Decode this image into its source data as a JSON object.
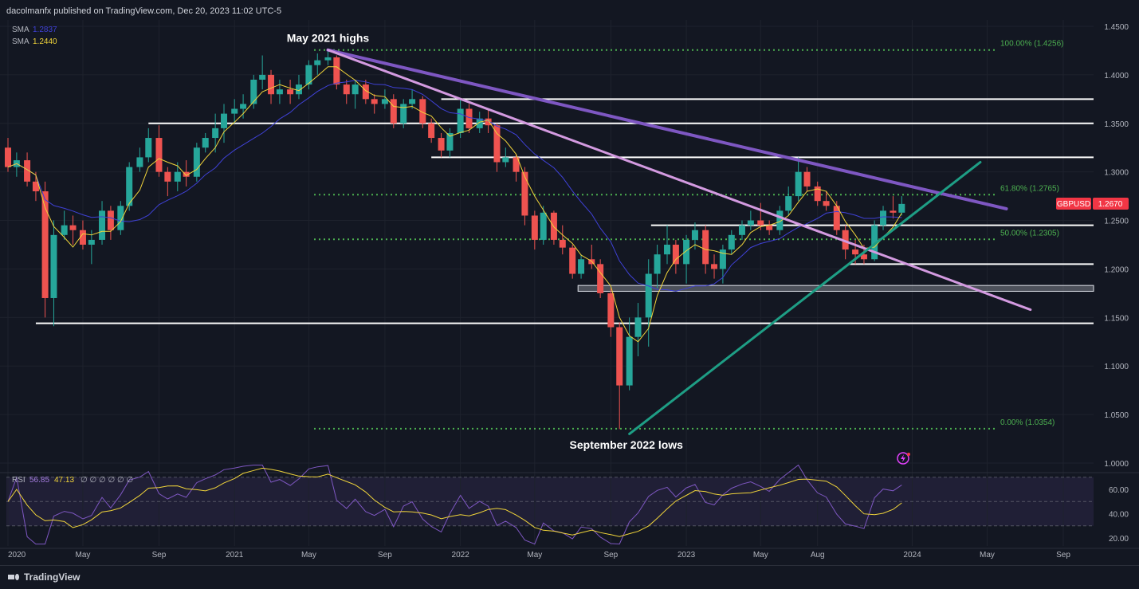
{
  "publisher_line": "dacolmanfx published on TradingView.com, Dec 20, 2023 11:02 UTC-5",
  "indicators": {
    "sma1": {
      "label": "SMA",
      "value": "1.2837",
      "color": "#3f41d6"
    },
    "sma2": {
      "label": "SMA",
      "value": "1.2440",
      "color": "#f0d43a"
    },
    "rsi": {
      "label": "RSI",
      "value1": "56.85",
      "value2": "47.13",
      "extras": "∅ ∅ ∅ ∅ ∅ ∅"
    }
  },
  "symbol_badge": {
    "name": "GBPUSD",
    "price": "1.2670",
    "color": "#f23645"
  },
  "footer": {
    "brand": "TradingView"
  },
  "colors": {
    "background": "#131722",
    "up": "#26a69a",
    "down": "#ef5350",
    "fib": "#4caf50",
    "purple_trend": "#7e57c2",
    "pink_trend": "#d39ae0",
    "teal_trend": "#1e9e85"
  },
  "chart_data": {
    "type": "candlestick",
    "price_axis": {
      "ticks": [
        "1.4500",
        "1.4000",
        "1.3500",
        "1.3000",
        "1.2500",
        "1.2000",
        "1.1500",
        "1.1000",
        "1.0500",
        "1.0000"
      ],
      "range": [
        0.995,
        1.45
      ]
    },
    "rsi_axis": {
      "ticks": [
        "60.00",
        "40.00",
        "20.00"
      ],
      "range": [
        10,
        80
      ],
      "band": [
        30,
        70
      ],
      "midline": 50
    },
    "time_axis": {
      "labels": [
        "2020",
        "May",
        "Sep",
        "2021",
        "May",
        "Sep",
        "2022",
        "May",
        "Sep",
        "2023",
        "May",
        "Aug",
        "2024",
        "May",
        "Sep"
      ]
    },
    "annotations": [
      {
        "text": "May 2021 highs",
        "date": "2021-06-01",
        "price": 1.4256
      },
      {
        "text": "September 2022 lows",
        "date": "2022-09-26",
        "price": 1.0354
      }
    ],
    "fib_levels": [
      {
        "label": "100.00% (1.4256)",
        "price": 1.4256
      },
      {
        "label": "61.80% (1.2765)",
        "price": 1.2765
      },
      {
        "label": "50.00% (1.2305)",
        "price": 1.2305
      },
      {
        "label": "0.00% (1.0354)",
        "price": 1.0354
      }
    ],
    "horizontal_levels": [
      {
        "price": 1.375,
        "from": "2021-12-01",
        "to": "2024-12-31"
      },
      {
        "price": 1.35,
        "from": "2020-08-15",
        "to": "2024-12-31"
      },
      {
        "price": 1.315,
        "from": "2021-11-15",
        "to": "2024-12-31"
      },
      {
        "price": 1.245,
        "from": "2022-11-05",
        "to": "2024-12-31"
      },
      {
        "price": 1.205,
        "from": "2023-09-20",
        "to": "2024-12-31"
      },
      {
        "price": 1.144,
        "from": "2020-02-15",
        "to": "2024-12-31"
      }
    ],
    "support_zone": {
      "from": "2022-07-10",
      "to": "2024-12-31",
      "top": 1.183,
      "bottom": 1.177
    },
    "trendlines": [
      {
        "name": "purple",
        "from": [
          "2021-06-01",
          1.4256
        ],
        "to": [
          "2024-06-01",
          1.262
        ],
        "width": 4
      },
      {
        "name": "pink",
        "from": [
          "2021-06-01",
          1.4256
        ],
        "to": [
          "2024-07-10",
          1.158
        ],
        "width": 3
      },
      {
        "name": "teal",
        "from": [
          "2022-10-01",
          1.03
        ],
        "to": [
          "2024-04-20",
          1.31
        ],
        "width": 3
      }
    ],
    "series": [
      {
        "name": "GBPUSD",
        "points": [
          [
            "2020-01-01",
            1.325,
            1.335,
            1.3,
            1.305
          ],
          [
            "2020-01-15",
            1.305,
            1.32,
            1.295,
            1.312
          ],
          [
            "2020-02-01",
            1.312,
            1.32,
            1.285,
            1.29
          ],
          [
            "2020-02-15",
            1.29,
            1.3,
            1.27,
            1.28
          ],
          [
            "2020-03-01",
            1.28,
            1.29,
            1.15,
            1.17
          ],
          [
            "2020-03-15",
            1.17,
            1.25,
            1.141,
            1.235
          ],
          [
            "2020-04-01",
            1.235,
            1.26,
            1.23,
            1.245
          ],
          [
            "2020-04-15",
            1.245,
            1.255,
            1.225,
            1.24
          ],
          [
            "2020-05-01",
            1.24,
            1.25,
            1.22,
            1.225
          ],
          [
            "2020-05-15",
            1.225,
            1.24,
            1.205,
            1.23
          ],
          [
            "2020-06-01",
            1.23,
            1.27,
            1.225,
            1.26
          ],
          [
            "2020-06-15",
            1.26,
            1.265,
            1.23,
            1.24
          ],
          [
            "2020-07-01",
            1.24,
            1.27,
            1.235,
            1.265
          ],
          [
            "2020-07-15",
            1.265,
            1.31,
            1.26,
            1.305
          ],
          [
            "2020-08-01",
            1.305,
            1.325,
            1.3,
            1.315
          ],
          [
            "2020-08-15",
            1.315,
            1.345,
            1.31,
            1.335
          ],
          [
            "2020-09-01",
            1.335,
            1.348,
            1.295,
            1.3
          ],
          [
            "2020-09-15",
            1.3,
            1.305,
            1.275,
            1.29
          ],
          [
            "2020-10-01",
            1.29,
            1.31,
            1.28,
            1.3
          ],
          [
            "2020-10-15",
            1.3,
            1.312,
            1.285,
            1.295
          ],
          [
            "2020-11-01",
            1.295,
            1.33,
            1.29,
            1.325
          ],
          [
            "2020-11-15",
            1.325,
            1.34,
            1.32,
            1.335
          ],
          [
            "2020-12-01",
            1.335,
            1.36,
            1.32,
            1.345
          ],
          [
            "2020-12-15",
            1.345,
            1.37,
            1.33,
            1.36
          ],
          [
            "2021-01-01",
            1.36,
            1.375,
            1.35,
            1.365
          ],
          [
            "2021-01-15",
            1.365,
            1.38,
            1.355,
            1.37
          ],
          [
            "2021-02-01",
            1.37,
            1.4,
            1.365,
            1.395
          ],
          [
            "2021-02-15",
            1.395,
            1.42,
            1.385,
            1.4
          ],
          [
            "2021-03-01",
            1.4,
            1.405,
            1.37,
            1.38
          ],
          [
            "2021-03-15",
            1.38,
            1.395,
            1.37,
            1.385
          ],
          [
            "2021-04-01",
            1.385,
            1.395,
            1.37,
            1.38
          ],
          [
            "2021-04-15",
            1.38,
            1.4,
            1.375,
            1.39
          ],
          [
            "2021-05-01",
            1.39,
            1.415,
            1.385,
            1.41
          ],
          [
            "2021-05-15",
            1.41,
            1.422,
            1.4,
            1.415
          ],
          [
            "2021-06-01",
            1.415,
            1.426,
            1.41,
            1.418
          ],
          [
            "2021-06-15",
            1.418,
            1.42,
            1.385,
            1.39
          ],
          [
            "2021-07-01",
            1.39,
            1.395,
            1.37,
            1.38
          ],
          [
            "2021-07-15",
            1.38,
            1.395,
            1.365,
            1.39
          ],
          [
            "2021-08-01",
            1.39,
            1.395,
            1.37,
            1.375
          ],
          [
            "2021-08-15",
            1.375,
            1.38,
            1.36,
            1.37
          ],
          [
            "2021-09-01",
            1.37,
            1.385,
            1.365,
            1.375
          ],
          [
            "2021-09-15",
            1.375,
            1.38,
            1.345,
            1.35
          ],
          [
            "2021-10-01",
            1.35,
            1.375,
            1.345,
            1.37
          ],
          [
            "2021-10-15",
            1.37,
            1.385,
            1.365,
            1.375
          ],
          [
            "2021-11-01",
            1.375,
            1.378,
            1.345,
            1.35
          ],
          [
            "2021-11-15",
            1.35,
            1.355,
            1.33,
            1.335
          ],
          [
            "2021-12-01",
            1.335,
            1.34,
            1.315,
            1.322
          ],
          [
            "2021-12-15",
            1.322,
            1.345,
            1.315,
            1.34
          ],
          [
            "2022-01-01",
            1.34,
            1.375,
            1.335,
            1.365
          ],
          [
            "2022-01-15",
            1.365,
            1.37,
            1.34,
            1.345
          ],
          [
            "2022-02-01",
            1.345,
            1.362,
            1.34,
            1.355
          ],
          [
            "2022-02-15",
            1.355,
            1.365,
            1.34,
            1.348
          ],
          [
            "2022-03-01",
            1.348,
            1.35,
            1.3,
            1.31
          ],
          [
            "2022-03-15",
            1.31,
            1.325,
            1.305,
            1.315
          ],
          [
            "2022-04-01",
            1.315,
            1.318,
            1.29,
            1.3
          ],
          [
            "2022-04-15",
            1.3,
            1.305,
            1.245,
            1.255
          ],
          [
            "2022-05-01",
            1.255,
            1.26,
            1.22,
            1.23
          ],
          [
            "2022-05-15",
            1.23,
            1.265,
            1.225,
            1.258
          ],
          [
            "2022-06-01",
            1.258,
            1.26,
            1.225,
            1.23
          ],
          [
            "2022-06-15",
            1.23,
            1.245,
            1.215,
            1.222
          ],
          [
            "2022-07-01",
            1.222,
            1.225,
            1.19,
            1.195
          ],
          [
            "2022-07-15",
            1.195,
            1.215,
            1.19,
            1.21
          ],
          [
            "2022-08-01",
            1.21,
            1.225,
            1.2,
            1.205
          ],
          [
            "2022-08-15",
            1.205,
            1.21,
            1.17,
            1.175
          ],
          [
            "2022-09-01",
            1.175,
            1.18,
            1.13,
            1.14
          ],
          [
            "2022-09-15",
            1.14,
            1.145,
            1.035,
            1.08
          ],
          [
            "2022-10-01",
            1.08,
            1.15,
            1.075,
            1.13
          ],
          [
            "2022-10-15",
            1.13,
            1.165,
            1.11,
            1.15
          ],
          [
            "2022-11-01",
            1.15,
            1.21,
            1.12,
            1.195
          ],
          [
            "2022-11-15",
            1.195,
            1.225,
            1.18,
            1.215
          ],
          [
            "2022-12-01",
            1.215,
            1.245,
            1.205,
            1.225
          ],
          [
            "2022-12-15",
            1.225,
            1.23,
            1.195,
            1.205
          ],
          [
            "2023-01-01",
            1.205,
            1.235,
            1.185,
            1.23
          ],
          [
            "2023-01-15",
            1.23,
            1.248,
            1.22,
            1.24
          ],
          [
            "2023-02-01",
            1.24,
            1.245,
            1.195,
            1.205
          ],
          [
            "2023-02-15",
            1.205,
            1.215,
            1.19,
            1.2
          ],
          [
            "2023-03-01",
            1.2,
            1.225,
            1.185,
            1.22
          ],
          [
            "2023-03-15",
            1.22,
            1.24,
            1.215,
            1.235
          ],
          [
            "2023-04-01",
            1.235,
            1.25,
            1.23,
            1.245
          ],
          [
            "2023-04-15",
            1.245,
            1.26,
            1.24,
            1.25
          ],
          [
            "2023-05-01",
            1.25,
            1.268,
            1.24,
            1.245
          ],
          [
            "2023-05-15",
            1.245,
            1.25,
            1.235,
            1.24
          ],
          [
            "2023-06-01",
            1.24,
            1.265,
            1.235,
            1.26
          ],
          [
            "2023-06-15",
            1.26,
            1.285,
            1.255,
            1.275
          ],
          [
            "2023-07-01",
            1.275,
            1.315,
            1.27,
            1.3
          ],
          [
            "2023-07-15",
            1.3,
            1.305,
            1.28,
            1.285
          ],
          [
            "2023-08-01",
            1.285,
            1.29,
            1.265,
            1.27
          ],
          [
            "2023-08-15",
            1.27,
            1.28,
            1.26,
            1.265
          ],
          [
            "2023-09-01",
            1.265,
            1.27,
            1.235,
            1.24
          ],
          [
            "2023-09-15",
            1.24,
            1.245,
            1.21,
            1.22
          ],
          [
            "2023-10-01",
            1.22,
            1.23,
            1.205,
            1.215
          ],
          [
            "2023-10-15",
            1.215,
            1.225,
            1.205,
            1.21
          ],
          [
            "2023-11-01",
            1.21,
            1.25,
            1.208,
            1.245
          ],
          [
            "2023-11-15",
            1.245,
            1.265,
            1.24,
            1.26
          ],
          [
            "2023-12-01",
            1.26,
            1.275,
            1.252,
            1.258
          ],
          [
            "2023-12-15",
            1.258,
            1.275,
            1.255,
            1.267
          ]
        ]
      }
    ]
  }
}
